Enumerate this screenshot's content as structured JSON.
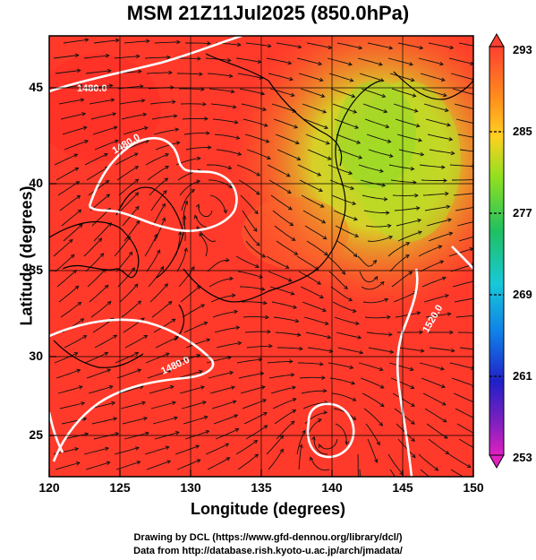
{
  "title": "MSM 21Z11Jul2025 (850.0hPa)",
  "xlabel": "Longitude (degrees)",
  "ylabel": "Latitude  (degrees)",
  "credit_line1": "Drawing by DCL (https://www.gfd-dennou.org/library/dcl/)",
  "credit_line2": "Data from http://database.rish.kyoto-u.ac.jp/arch/jmadata/",
  "x_ticks": [
    "120",
    "125",
    "130",
    "135",
    "140",
    "145",
    "150"
  ],
  "y_ticks": [
    "25",
    "30",
    "35",
    "40",
    "45"
  ],
  "colorbar": {
    "ticks": [
      "293",
      "285",
      "277",
      "269",
      "261",
      "253"
    ],
    "min": 253,
    "max": 293
  },
  "contours": {
    "labels": [
      "1480.0",
      "1480.0",
      "1480.0",
      "1520.0"
    ]
  },
  "colors": {
    "warm": "#ff3c2a",
    "mid": "#a8e020",
    "contour": "#ffffff"
  }
}
